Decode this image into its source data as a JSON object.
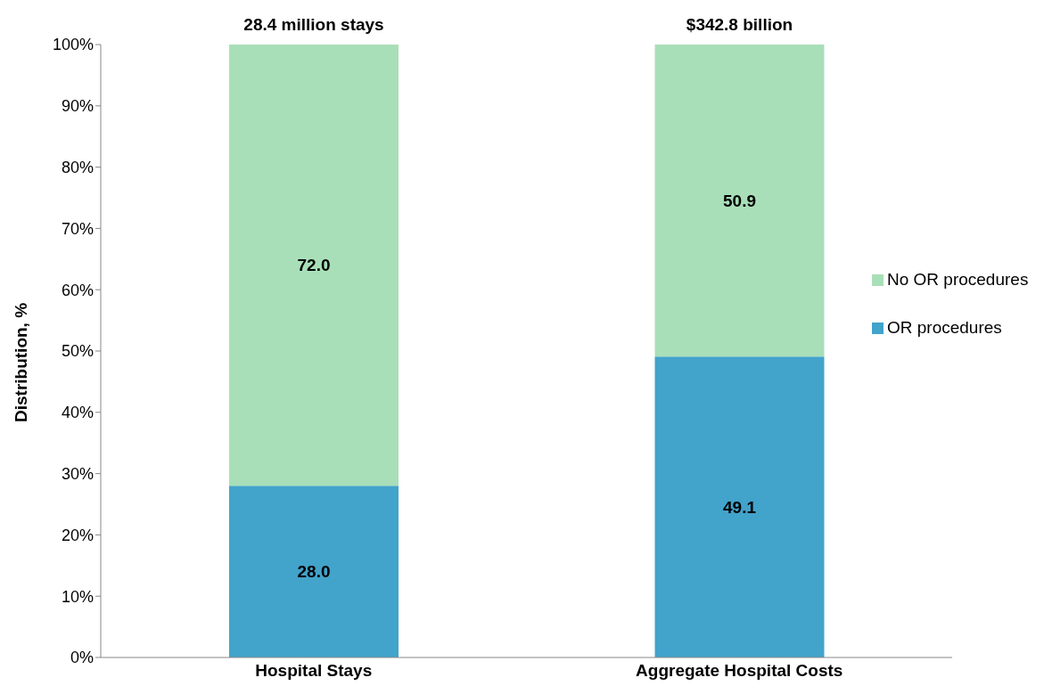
{
  "chart_data": {
    "type": "bar",
    "stacked": true,
    "ylabel": "Distribution, %",
    "categories": [
      "Hospital Stays",
      "Aggregate Hospital Costs"
    ],
    "series": [
      {
        "name": "OR procedures",
        "color": "#42a3cb",
        "values": [
          28.0,
          49.1
        ],
        "value_labels": [
          "28.0",
          "49.1"
        ]
      },
      {
        "name": "No OR procedures",
        "color": "#a9dfb8",
        "values": [
          72.0,
          50.9
        ],
        "value_labels": [
          "72.0",
          "50.9"
        ]
      }
    ],
    "annotations": [
      {
        "text": "28.4 million stays",
        "x": "Hospital Stays",
        "y": 100
      },
      {
        "text": "$342.8 billion",
        "x": "Aggregate Hospital Costs",
        "y": 100
      }
    ],
    "ylim": [
      0,
      100
    ],
    "yticks": [
      {
        "value": 0,
        "label": "0%"
      },
      {
        "value": 10,
        "label": "10%"
      },
      {
        "value": 20,
        "label": "20%"
      },
      {
        "value": 30,
        "label": "30%"
      },
      {
        "value": 40,
        "label": "40%"
      },
      {
        "value": 50,
        "label": "50%"
      },
      {
        "value": 60,
        "label": "60%"
      },
      {
        "value": 70,
        "label": "70%"
      },
      {
        "value": 80,
        "label": "80%"
      },
      {
        "value": 90,
        "label": "90%"
      },
      {
        "value": 100,
        "label": "100%"
      }
    ],
    "grid": false,
    "legend": "right"
  }
}
